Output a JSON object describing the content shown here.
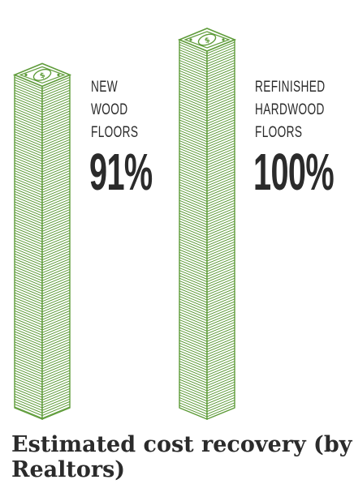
{
  "chart_data": {
    "type": "bar",
    "categories": [
      "NEW WOOD FLOORS",
      "REFINISHED HARDWOOD FLOORS"
    ],
    "category_lines": [
      [
        "NEW",
        "WOOD",
        "FLOORS"
      ],
      [
        "REFINISHED",
        "HARDWOOD",
        "FLOORS"
      ]
    ],
    "values": [
      91,
      100
    ],
    "value_labels": [
      "91%",
      "100%"
    ],
    "ylim": [
      0,
      100
    ],
    "unit": "%",
    "title": "Estimated cost recovery (by Realtors)",
    "bar_style": "stacks of dollar bills",
    "colors": {
      "bill_stroke": "#5f9c3a",
      "bill_fill": "#ffffff",
      "text": "#2b2b2b"
    }
  }
}
